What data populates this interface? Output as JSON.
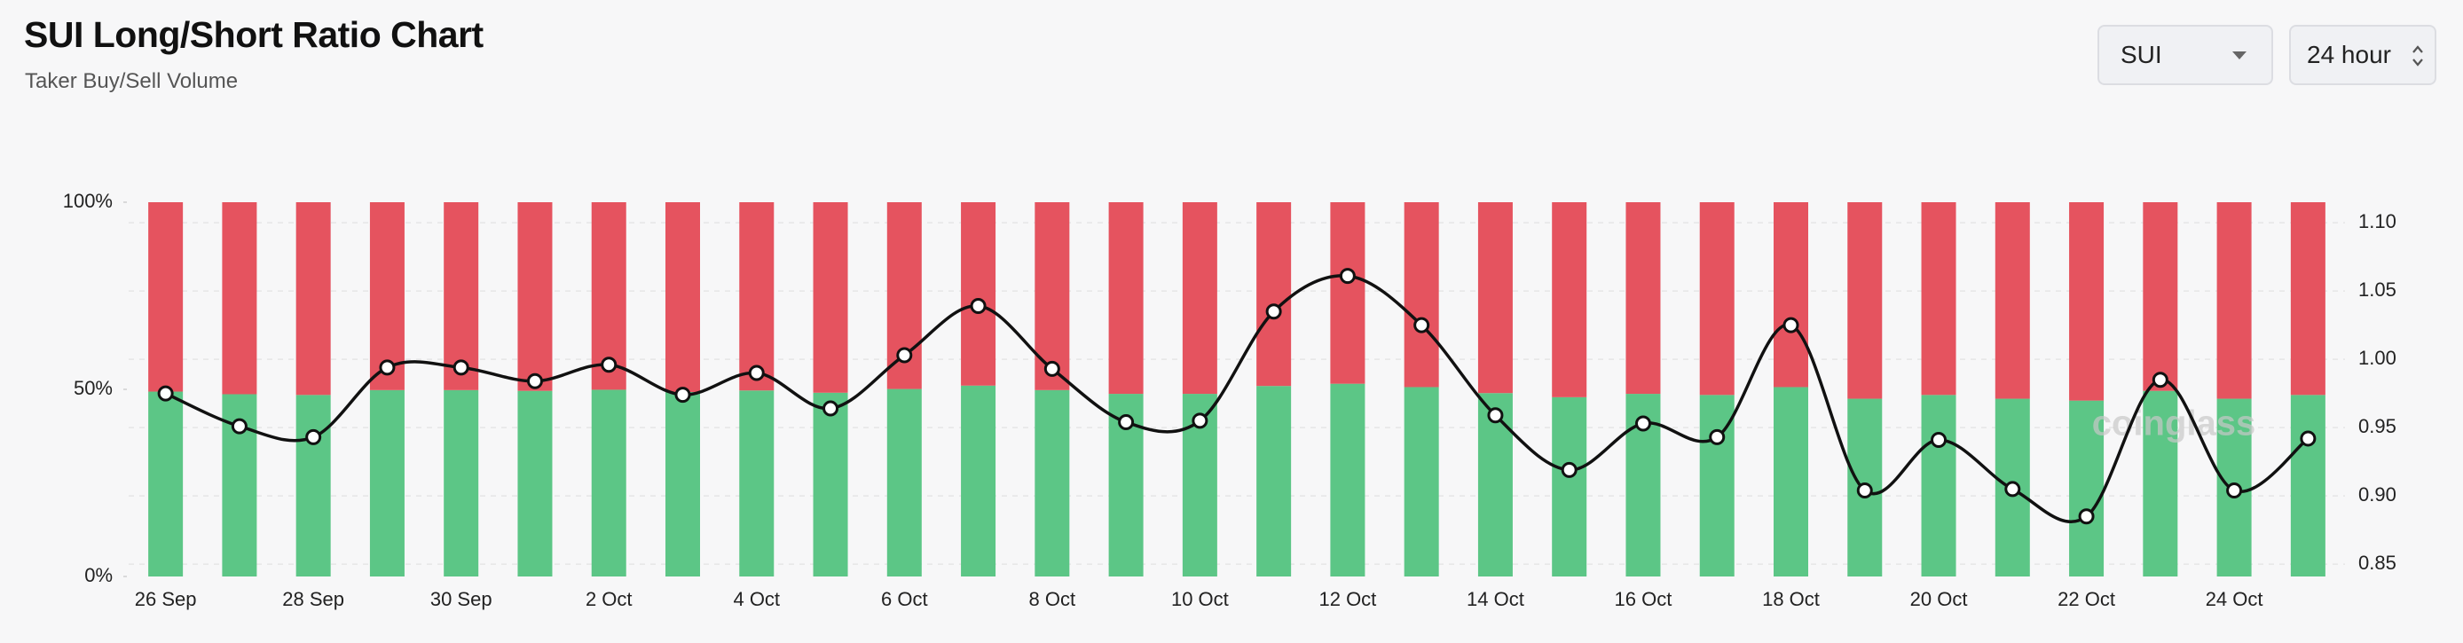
{
  "header": {
    "title": "SUI Long/Short Ratio Chart",
    "subtitle": "Taker Buy/Sell Volume"
  },
  "controls": {
    "symbol": "SUI",
    "interval": "24 hour"
  },
  "chart_data": {
    "type": "bar",
    "stacked": true,
    "categories": [
      "26 Sep",
      null,
      "28 Sep",
      null,
      "30 Sep",
      null,
      "2 Oct",
      null,
      "4 Oct",
      null,
      "6 Oct",
      null,
      "8 Oct",
      null,
      "10 Oct",
      null,
      "12 Oct",
      null,
      "14 Oct",
      null,
      "16 Oct",
      null,
      "18 Oct",
      null,
      "20 Oct",
      null,
      "22 Oct",
      null,
      "24 Oct",
      null
    ],
    "series": [
      {
        "color": "#5cc686",
        "values": [
          49.4,
          48.7,
          48.5,
          49.8,
          49.8,
          49.6,
          49.9,
          49.3,
          49.7,
          49.1,
          50.1,
          51.0,
          49.8,
          48.8,
          48.8,
          50.9,
          51.5,
          50.6,
          49.0,
          47.9,
          48.8,
          48.5,
          50.6,
          47.5,
          48.5,
          47.5,
          47.0,
          49.6,
          47.5,
          48.5
        ]
      },
      {
        "color": "#e5535f",
        "values": [
          50.6,
          51.3,
          51.5,
          50.2,
          50.2,
          50.4,
          50.1,
          50.7,
          50.3,
          50.9,
          49.9,
          49.0,
          50.2,
          51.2,
          51.2,
          49.1,
          48.5,
          49.4,
          51.0,
          52.1,
          51.2,
          51.5,
          49.4,
          52.5,
          51.5,
          52.5,
          53.0,
          50.4,
          52.5,
          51.5
        ]
      },
      {
        "type": "line",
        "axis": "y2",
        "color": "#111111",
        "values": [
          0.975,
          0.951,
          0.943,
          0.994,
          0.994,
          0.984,
          0.996,
          0.974,
          0.99,
          0.964,
          1.003,
          1.039,
          0.993,
          0.954,
          0.955,
          1.035,
          1.061,
          1.025,
          0.959,
          0.919,
          0.953,
          0.943,
          1.025,
          0.904,
          0.941,
          0.905,
          0.885,
          0.985,
          0.904,
          0.942
        ]
      }
    ],
    "ylim": [
      0,
      100
    ],
    "yticks": [
      {
        "value": 0,
        "label": "0%"
      },
      {
        "value": 50,
        "label": "50%"
      },
      {
        "value": 100,
        "label": "100%"
      }
    ],
    "y2lim": [
      0.841,
      1.115
    ],
    "y2ticks": [
      0.85,
      {
        "value": 0.9,
        "label": "0.90"
      },
      0.95,
      {
        "value": 1.0,
        "label": "1.00"
      },
      1.05,
      {
        "value": 1.1,
        "label": "1.10"
      }
    ],
    "grid": true,
    "watermark": "coinglass"
  }
}
